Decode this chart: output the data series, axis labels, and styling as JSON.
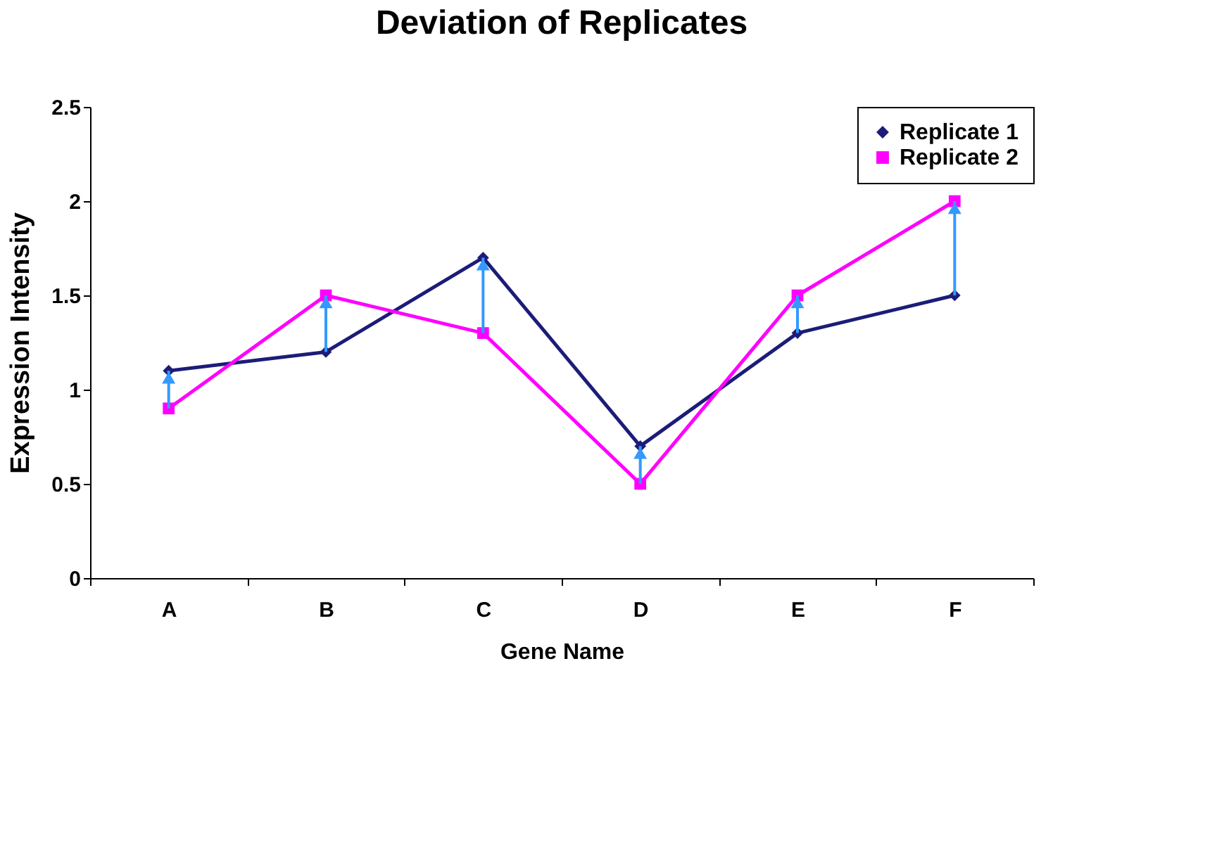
{
  "chart_data": {
    "type": "line",
    "title": "Deviation of Replicates",
    "xlabel": "Gene Name",
    "ylabel": "Expression Intensity",
    "categories": [
      "A",
      "B",
      "C",
      "D",
      "E",
      "F"
    ],
    "series": [
      {
        "name": "Replicate 1",
        "color": "#1c1c78",
        "marker": "diamond",
        "values": [
          1.1,
          1.2,
          1.7,
          0.7,
          1.3,
          1.5
        ]
      },
      {
        "name": "Replicate 2",
        "color": "#ff00ff",
        "marker": "square",
        "values": [
          0.9,
          1.5,
          1.3,
          0.5,
          1.5,
          2.0
        ]
      },
      {
        "type": "bar",
        "color": "#3399ff",
        "base": [
          0.9,
          1.2,
          1.3,
          0.5,
          1.3,
          1.5
        ],
        "values": [
          0.2,
          0.3,
          0.4,
          0.2,
          0.2,
          0.5
        ]
      }
    ],
    "ylim": [
      0,
      2.5
    ],
    "yticks": [
      0,
      0.5,
      1,
      1.5,
      2,
      2.5
    ],
    "grid": false,
    "legend": "top right"
  }
}
